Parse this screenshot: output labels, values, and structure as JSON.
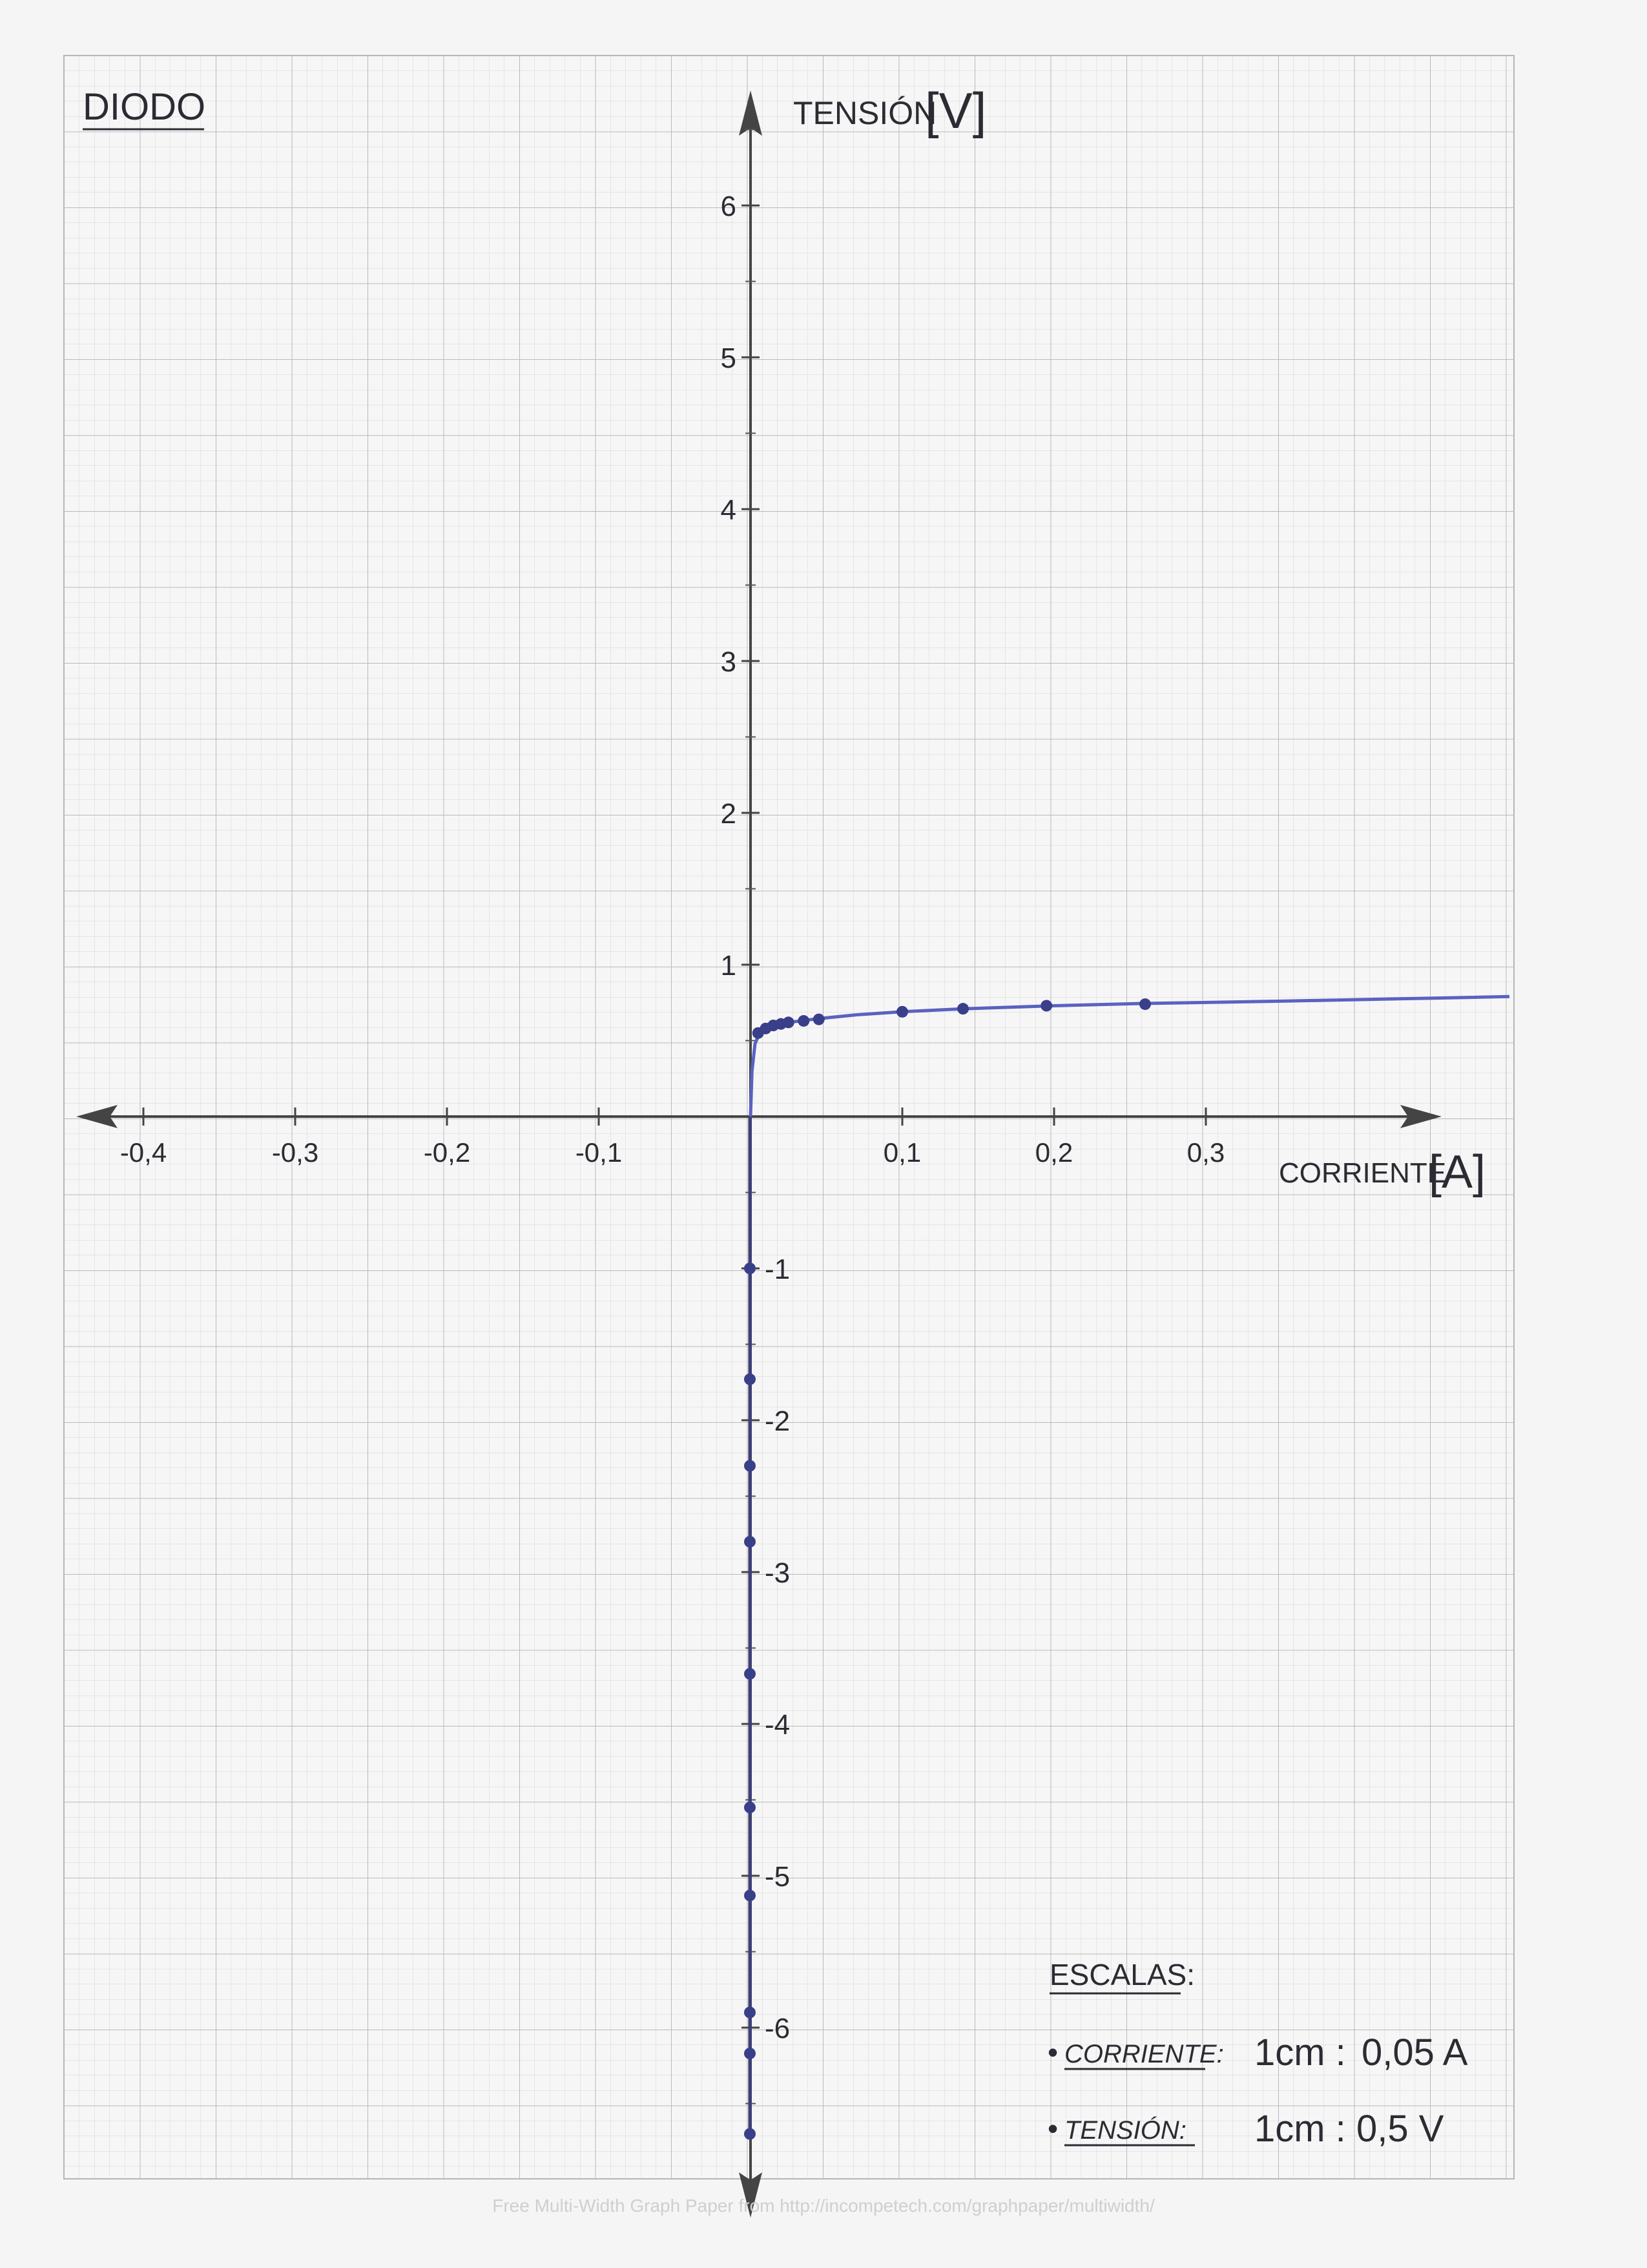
{
  "chart_data": {
    "type": "line",
    "title": "DIODO",
    "xlabel": "CORRIENTE",
    "xunit": "[A]",
    "ylabel": "TENSIÓN",
    "yunit": "[V]",
    "xlim": [
      -0.45,
      0.5
    ],
    "ylim": [
      -7.0,
      6.7
    ],
    "x_ticks": [
      {
        "v": -0.4,
        "label": "-0,4"
      },
      {
        "v": -0.3,
        "label": "-0,3"
      },
      {
        "v": -0.2,
        "label": "-0,2"
      },
      {
        "v": -0.1,
        "label": "-0,1"
      },
      {
        "v": 0.1,
        "label": "0,1"
      },
      {
        "v": 0.2,
        "label": "0,2"
      },
      {
        "v": 0.3,
        "label": "0,3"
      }
    ],
    "y_ticks": [
      {
        "v": 6,
        "label": "6"
      },
      {
        "v": 5,
        "label": "5"
      },
      {
        "v": 4,
        "label": "4"
      },
      {
        "v": 3,
        "label": "3"
      },
      {
        "v": 2,
        "label": "2"
      },
      {
        "v": 1,
        "label": "1"
      },
      {
        "v": -1,
        "label": "-1"
      },
      {
        "v": -2,
        "label": "-2"
      },
      {
        "v": -3,
        "label": "-3"
      },
      {
        "v": -4,
        "label": "-4"
      },
      {
        "v": -5,
        "label": "-5"
      },
      {
        "v": -6,
        "label": "-6"
      }
    ],
    "grid": true,
    "series": [
      {
        "color": "#5a62c0",
        "points": [
          {
            "x": 0.005,
            "y": 0.55
          },
          {
            "x": 0.01,
            "y": 0.58
          },
          {
            "x": 0.015,
            "y": 0.6
          },
          {
            "x": 0.02,
            "y": 0.61
          },
          {
            "x": 0.025,
            "y": 0.62
          },
          {
            "x": 0.035,
            "y": 0.63
          },
          {
            "x": 0.045,
            "y": 0.64
          },
          {
            "x": 0.1,
            "y": 0.69
          },
          {
            "x": 0.14,
            "y": 0.71
          },
          {
            "x": 0.195,
            "y": 0.73
          },
          {
            "x": 0.26,
            "y": 0.74
          },
          {
            "x": 0.0,
            "y": -1.0
          },
          {
            "x": 0.0,
            "y": -1.73
          },
          {
            "x": 0.0,
            "y": -2.3
          },
          {
            "x": 0.0,
            "y": -2.8
          },
          {
            "x": 0.0,
            "y": -3.67
          },
          {
            "x": 0.0,
            "y": -4.55
          },
          {
            "x": 0.0,
            "y": -5.13
          },
          {
            "x": 0.0,
            "y": -5.9
          },
          {
            "x": 0.0,
            "y": -6.17
          },
          {
            "x": 0.0,
            "y": -6.7
          }
        ],
        "curve": [
          {
            "x": 0.0,
            "y": 0.0
          },
          {
            "x": 0.001,
            "y": 0.3
          },
          {
            "x": 0.003,
            "y": 0.48
          },
          {
            "x": 0.006,
            "y": 0.55
          },
          {
            "x": 0.012,
            "y": 0.59
          },
          {
            "x": 0.025,
            "y": 0.62
          },
          {
            "x": 0.045,
            "y": 0.645
          },
          {
            "x": 0.07,
            "y": 0.67
          },
          {
            "x": 0.1,
            "y": 0.69
          },
          {
            "x": 0.14,
            "y": 0.71
          },
          {
            "x": 0.2,
            "y": 0.73
          },
          {
            "x": 0.26,
            "y": 0.745
          },
          {
            "x": 0.35,
            "y": 0.76
          },
          {
            "x": 0.45,
            "y": 0.78
          },
          {
            "x": 0.5,
            "y": 0.79
          }
        ],
        "reverse_curve": [
          {
            "x": 0.0,
            "y": 0.0
          },
          {
            "x": 0.0,
            "y": -6.7
          }
        ]
      }
    ]
  },
  "scales": {
    "heading": "ESCALAS:",
    "rows": [
      {
        "bullet": "•",
        "name": "CORRIENTE:",
        "unit": "1cm :",
        "value": "0,05 A"
      },
      {
        "bullet": "•",
        "name": "TENSIÓN:",
        "unit": "1cm :",
        "value": "0,5 V"
      }
    ]
  },
  "footer": "Free Multi-Width Graph Paper from http://incompetech.com/graphpaper/multiwidth/"
}
